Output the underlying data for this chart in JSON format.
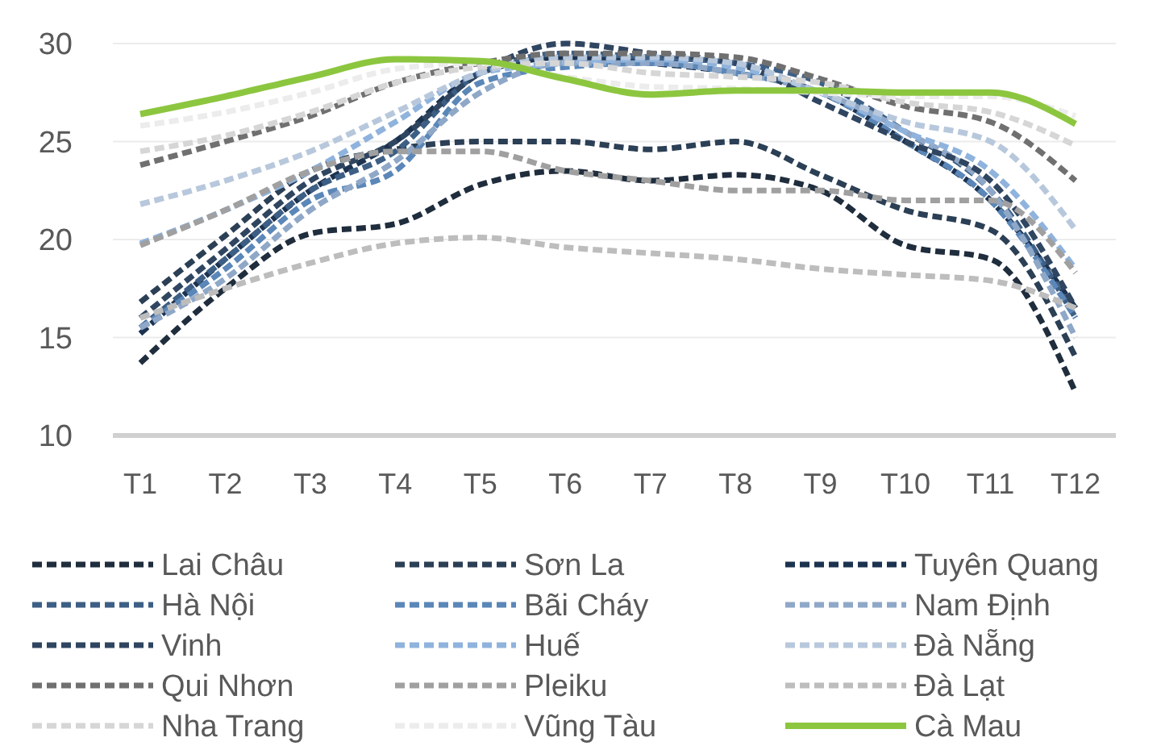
{
  "chart_data": {
    "type": "line",
    "categories": [
      "T1",
      "T2",
      "T3",
      "T4",
      "T5",
      "T6",
      "T7",
      "T8",
      "T9",
      "T10",
      "T11",
      "T12"
    ],
    "ylim": [
      10,
      30
    ],
    "yticks": [
      10,
      15,
      20,
      25,
      30
    ],
    "grid": "y",
    "legend": "bottom",
    "series": [
      {
        "name": "Lai Châu",
        "color": "#1f2d3d",
        "line_style": "dashed",
        "values": [
          13.7,
          17.5,
          20.3,
          20.8,
          22.8,
          23.5,
          23,
          23.3,
          22.5,
          19.7,
          19,
          12.2
        ]
      },
      {
        "name": "Sơn La",
        "color": "#2b3f55",
        "line_style": "dashed",
        "values": [
          16.8,
          20.2,
          23.5,
          24.6,
          25,
          25,
          24.6,
          25,
          23.3,
          21.5,
          20.5,
          14
        ]
      },
      {
        "name": "Tuyên Quang",
        "color": "#1c3350",
        "line_style": "dashed",
        "values": [
          15.2,
          19,
          22.5,
          25,
          28.5,
          29.3,
          29,
          28.5,
          27.5,
          25,
          22,
          16.5
        ]
      },
      {
        "name": "Hà Nội",
        "color": "#3d5f85",
        "line_style": "dashed",
        "values": [
          15.5,
          19,
          22.5,
          24.5,
          28.5,
          29.5,
          29.3,
          29,
          28,
          25.5,
          22.5,
          16
        ]
      },
      {
        "name": "Bãi Cháy",
        "color": "#5b87b8",
        "line_style": "dashed",
        "values": [
          15.5,
          18.5,
          22,
          23.5,
          28,
          28.8,
          29,
          28.5,
          27.5,
          25,
          22,
          16
        ]
      },
      {
        "name": "Nam Định",
        "color": "#8fa8c8",
        "line_style": "dashed",
        "values": [
          15.5,
          18,
          21.5,
          24,
          27.5,
          29,
          29,
          28.5,
          27.5,
          25.5,
          22.5,
          15
        ]
      },
      {
        "name": "Vinh",
        "color": "#2f4560",
        "line_style": "dashed",
        "values": [
          16,
          19.5,
          23,
          25,
          28.5,
          30,
          29.5,
          29,
          27,
          25,
          23,
          16.5
        ]
      },
      {
        "name": "Huế",
        "color": "#8fb3dd",
        "line_style": "dashed",
        "values": [
          19.8,
          21.5,
          23.5,
          26,
          28.5,
          29,
          29.2,
          28.8,
          27.5,
          25.5,
          23.5,
          18.5
        ]
      },
      {
        "name": "Đà Nẵng",
        "color": "#b8c8dc",
        "line_style": "dashed",
        "values": [
          21.8,
          23,
          24.5,
          26.5,
          28.5,
          29.3,
          29.3,
          29,
          27.5,
          26,
          25,
          20.5
        ]
      },
      {
        "name": "Qui Nhơn",
        "color": "#707070",
        "line_style": "dashed",
        "values": [
          23.8,
          25,
          26.3,
          28,
          29,
          29.5,
          29.5,
          29.3,
          28.2,
          26.8,
          26,
          23
        ]
      },
      {
        "name": "Pleiku",
        "color": "#a0a0a0",
        "line_style": "dashed",
        "values": [
          19.7,
          21.5,
          23.5,
          24.5,
          24.5,
          23.5,
          23,
          22.5,
          22.5,
          22,
          22,
          18.3
        ]
      },
      {
        "name": "Đà Lạt",
        "color": "#bdbdbd",
        "line_style": "dashed",
        "values": [
          16,
          17.5,
          18.8,
          19.8,
          20.1,
          19.6,
          19.3,
          19,
          18.5,
          18.2,
          17.9,
          16.5
        ]
      },
      {
        "name": "Nha Trang",
        "color": "#d6d6d6",
        "line_style": "dashed",
        "values": [
          24.5,
          25.3,
          26.5,
          28,
          28.8,
          29,
          28.5,
          28.3,
          28,
          27,
          26.5,
          24.8
        ]
      },
      {
        "name": "Vũng Tàu",
        "color": "#ececec",
        "line_style": "dashed",
        "values": [
          25.8,
          26.5,
          27.5,
          28.7,
          29,
          28.3,
          27.8,
          27.7,
          27.5,
          27.3,
          27.3,
          26.3
        ]
      },
      {
        "name": "Cà Mau",
        "color": "#8cc63f",
        "line_style": "solid",
        "values": [
          26.4,
          27.3,
          28.3,
          29.2,
          29.1,
          28.2,
          27.4,
          27.6,
          27.6,
          27.5,
          27.5,
          25.9
        ]
      }
    ]
  }
}
